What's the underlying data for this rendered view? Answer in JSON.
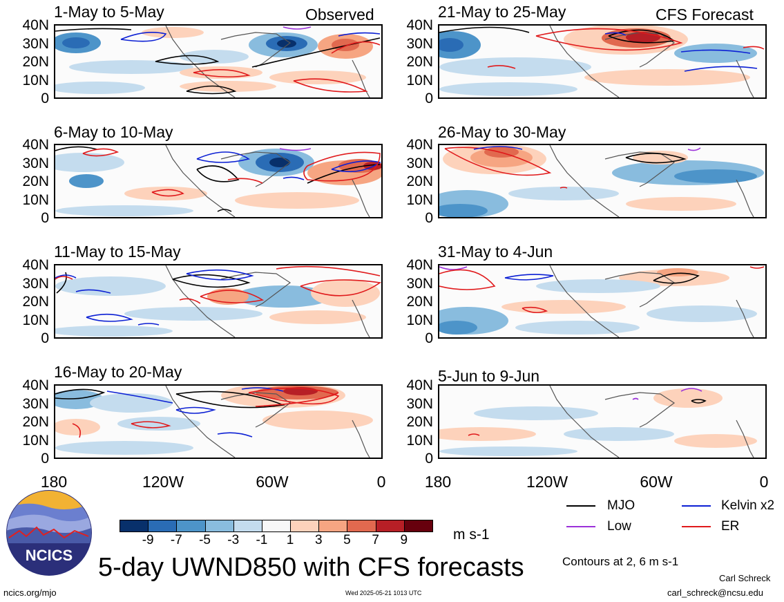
{
  "panels": [
    {
      "title": "1-May to 5-May",
      "tag": "Observed"
    },
    {
      "title": "21-May to 25-May",
      "tag": "CFS Forecast"
    },
    {
      "title": "6-May to 10-May",
      "tag": ""
    },
    {
      "title": "26-May to 30-May",
      "tag": ""
    },
    {
      "title": "11-May to 15-May",
      "tag": ""
    },
    {
      "title": "31-May to 4-Jun",
      "tag": ""
    },
    {
      "title": "16-May to 20-May",
      "tag": ""
    },
    {
      "title": "5-Jun to 9-Jun",
      "tag": ""
    }
  ],
  "lat_labels": [
    "40N",
    "30N",
    "20N",
    "10N",
    "0"
  ],
  "lon_labels": [
    "180",
    "120W",
    "60W",
    "0"
  ],
  "colorbar": {
    "colors": [
      "#08306b",
      "#2a6cb5",
      "#4d94c9",
      "#89bcde",
      "#c4dcee",
      "#f8f8f8",
      "#fdd2bb",
      "#f6a582",
      "#e1694f",
      "#b71f26",
      "#67000d"
    ],
    "ticks": [
      "-9",
      "-7",
      "-5",
      "-3",
      "-1",
      "1",
      "3",
      "5",
      "7",
      "9"
    ],
    "unit": "m s-1"
  },
  "legend": [
    {
      "label": "MJO",
      "color": "#000000"
    },
    {
      "label": "Kelvin x2",
      "color": "#0b1fd4"
    },
    {
      "label": "Low",
      "color": "#9b30d9"
    },
    {
      "label": "ER",
      "color": "#e0191b"
    }
  ],
  "contours_note": "Contours at 2, 6 m s-1",
  "main_title": "5-day UWND850 with CFS forecasts",
  "logo_text": "NCICS",
  "footer": {
    "url": "ncics.org/mjo",
    "timestamp": "Wed 2025-05-21 1013 UTC",
    "author": "Carl Schreck",
    "email": "carl_schreck@ncsu.edu"
  }
}
